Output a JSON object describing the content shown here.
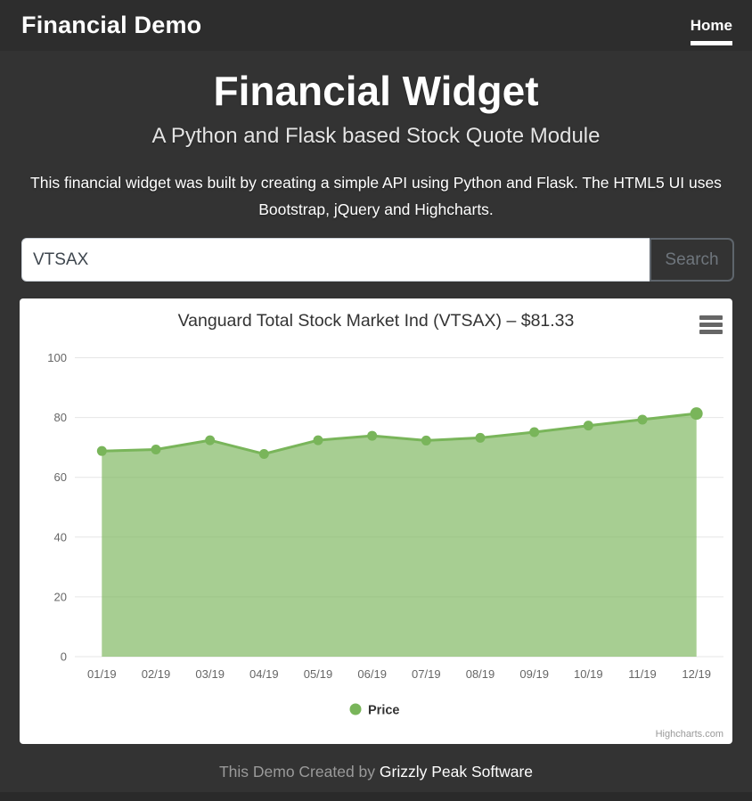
{
  "navbar": {
    "brand": "Financial Demo",
    "items": [
      {
        "label": "Home",
        "active": true
      }
    ]
  },
  "hero": {
    "title": "Financial Widget",
    "subtitle": "A Python and Flask based Stock Quote Module",
    "description": "This financial widget was built by creating a simple API using Python and Flask. The HTML5 UI uses Bootstrap, jQuery and Highcharts."
  },
  "search": {
    "value": "VTSAX",
    "button_label": "Search"
  },
  "chart_data": {
    "type": "area",
    "title": "Vanguard Total Stock Market Ind (VTSAX) – $81.33",
    "categories": [
      "01/19",
      "02/19",
      "03/19",
      "04/19",
      "05/19",
      "06/19",
      "07/19",
      "08/19",
      "09/19",
      "10/19",
      "11/19",
      "12/19"
    ],
    "series": [
      {
        "name": "Price",
        "values": [
          68.8,
          69.3,
          72.4,
          67.8,
          72.4,
          73.9,
          72.3,
          73.2,
          75.1,
          77.3,
          79.3,
          81.33
        ]
      }
    ],
    "xlabel": "",
    "ylabel": "",
    "ylim": [
      0,
      100
    ],
    "ytick_interval": 20,
    "grid": true,
    "legend_position": "bottom",
    "credits": "Highcharts.com",
    "colors": {
      "line": "#79b55a",
      "fill": "rgba(121,181,90,0.66)",
      "grid": "#e6e6e6",
      "axis_label": "#666666",
      "title": "#333333",
      "legend_text": "#333333",
      "credits_text": "#999999",
      "menu_icon": "#666666"
    }
  },
  "footer": {
    "text": "This Demo Created by",
    "link_label": "Grizzly Peak Software"
  }
}
